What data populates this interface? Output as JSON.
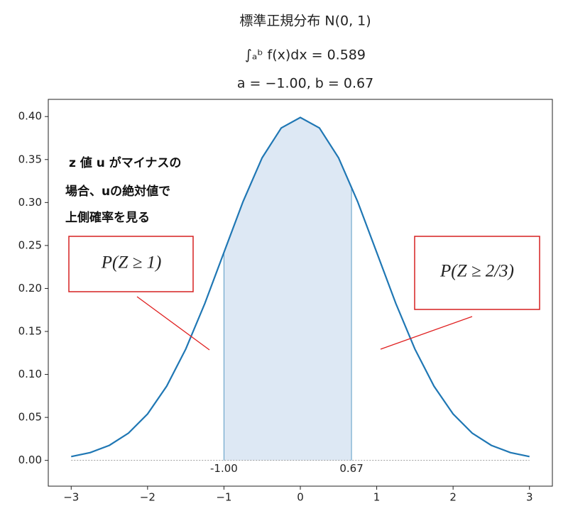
{
  "chart_data": {
    "type": "line",
    "title": "標準正規分布 N(0, 1)",
    "subtitle": [
      "∫ₐᵇ f(x)dx = 0.589",
      "a = −1.00, b = 0.67"
    ],
    "x": [
      -3,
      -2.75,
      -2.5,
      -2.25,
      -2,
      -1.75,
      -1.5,
      -1.25,
      -1,
      -0.75,
      -0.5,
      -0.25,
      0,
      0.25,
      0.5,
      0.75,
      1,
      1.25,
      1.5,
      1.75,
      2,
      2.25,
      2.5,
      2.75,
      3
    ],
    "values": [
      0.0044,
      0.0091,
      0.0175,
      0.0317,
      0.054,
      0.0863,
      0.1295,
      0.1826,
      0.242,
      0.3011,
      0.3521,
      0.3867,
      0.3989,
      0.3867,
      0.3521,
      0.3011,
      0.242,
      0.1826,
      0.1295,
      0.0863,
      0.054,
      0.0317,
      0.0175,
      0.0091,
      0.0044
    ],
    "color": "#1f77b4",
    "shade_color": "#dde8f4",
    "bounds": [
      {
        "value": -1,
        "label": "-1.00"
      },
      {
        "value": 0.67,
        "label": "0.67"
      }
    ],
    "xlim": [
      -3.3,
      3.3
    ],
    "ylim": [
      -0.03,
      0.42
    ],
    "xticks": [
      {
        "value": -3,
        "label": "−3"
      },
      {
        "value": -2,
        "label": "−2"
      },
      {
        "value": -1,
        "label": "−1"
      },
      0,
      1,
      2,
      3
    ],
    "yticks": [
      {
        "value": 0,
        "label": "0.00"
      },
      {
        "value": 0.05,
        "label": "0.05"
      },
      {
        "value": 0.1,
        "label": "0.10"
      },
      {
        "value": 0.15,
        "label": "0.15"
      },
      {
        "value": 0.2,
        "label": "0.20"
      },
      {
        "value": 0.25,
        "label": "0.25"
      },
      {
        "value": 0.3,
        "label": "0.30"
      },
      {
        "value": 0.35,
        "label": "0.35"
      },
      {
        "value": 0.4,
        "label": "0.40"
      }
    ],
    "annotations": [
      "z 値 u がマイナスの",
      "場合、uの絶対値で",
      "上側確率を見る",
      "P(Z ≥ 1)",
      "P(Z ≥ 2/3)"
    ]
  }
}
